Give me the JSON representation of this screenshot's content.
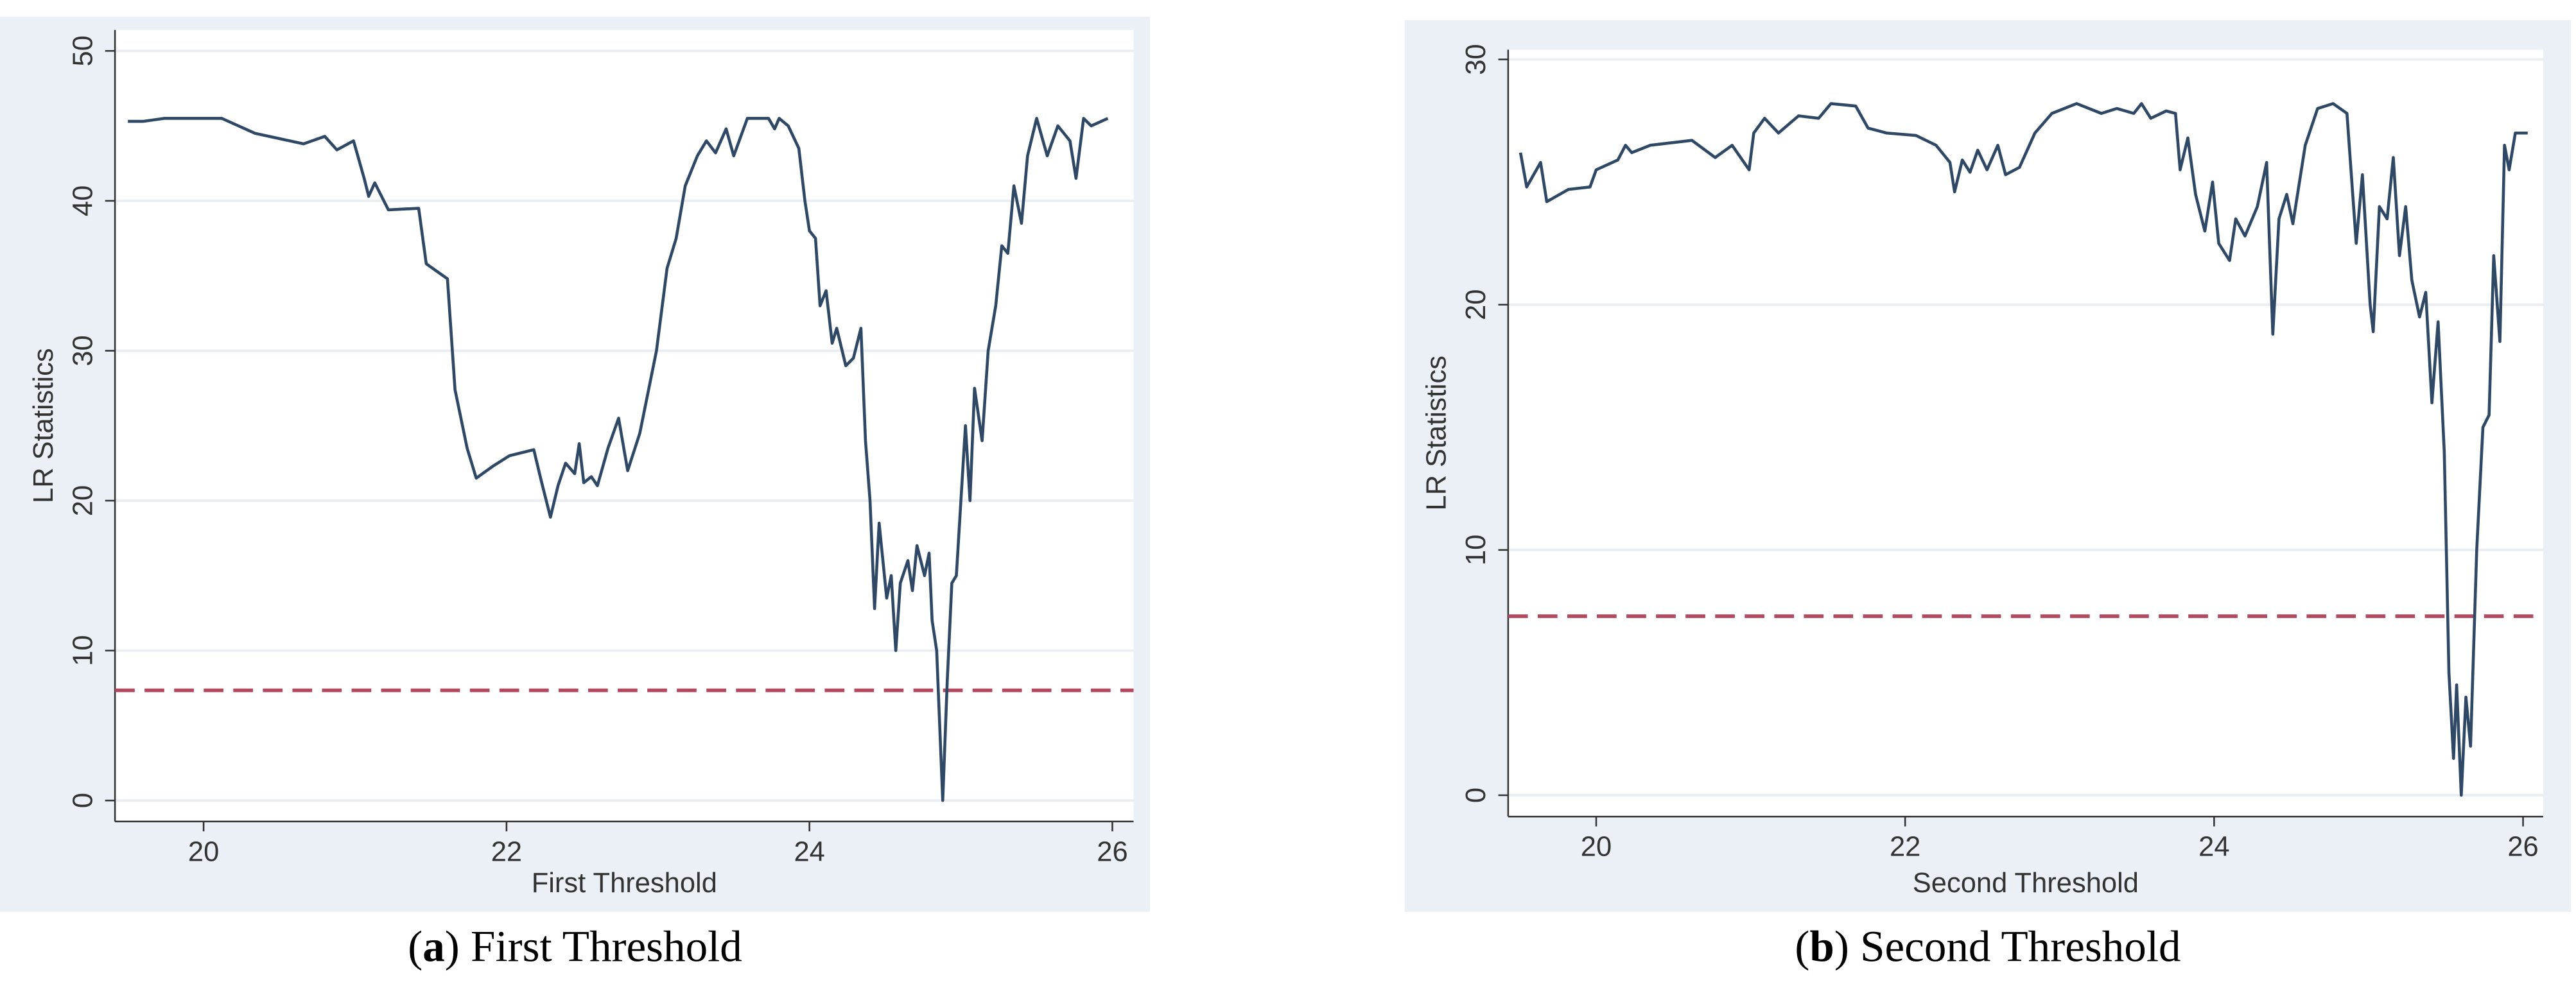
{
  "chart_data": [
    {
      "type": "line",
      "ylabel": "LR Statistics",
      "xlabel": "First Threshold",
      "caption_parts": [
        "(",
        "a",
        ") First Threshold"
      ],
      "xlim": [
        19.415,
        26.14
      ],
      "ylim": [
        -1.4,
        51.4
      ],
      "xticks": [
        20,
        22,
        24,
        26
      ],
      "yticks": [
        0,
        10,
        20,
        30,
        40,
        50
      ],
      "grid": true,
      "color": "#2e4866",
      "critical_value": 7.35,
      "critical_color": "#b4485f",
      "x": [
        19.5,
        19.6,
        19.74,
        20.12,
        20.34,
        20.66,
        20.8,
        20.88,
        20.99,
        21.06,
        21.09,
        21.13,
        21.22,
        21.42,
        21.47,
        21.61,
        21.66,
        21.74,
        21.8,
        21.91,
        22.02,
        22.18,
        22.23,
        22.29,
        22.34,
        22.39,
        22.45,
        22.48,
        22.51,
        22.56,
        22.6,
        22.67,
        22.74,
        22.8,
        22.88,
        22.99,
        23.06,
        23.12,
        23.18,
        23.26,
        23.32,
        23.38,
        23.45,
        23.5,
        23.59,
        23.73,
        23.77,
        23.8,
        23.86,
        23.93,
        23.97,
        24.0,
        24.04,
        24.07,
        24.11,
        24.15,
        24.18,
        24.24,
        24.29,
        24.34,
        24.37,
        24.4,
        24.43,
        24.46,
        24.51,
        24.54,
        24.57,
        24.6,
        24.65,
        24.68,
        24.71,
        24.76,
        24.79,
        24.81,
        24.84,
        24.88,
        24.91,
        24.94,
        24.97,
        25.03,
        25.06,
        25.09,
        25.14,
        25.18,
        25.23,
        25.27,
        25.31,
        25.35,
        25.4,
        25.44,
        25.5,
        25.57,
        25.64,
        25.72,
        25.76,
        25.81,
        25.86,
        25.97
      ],
      "values": [
        45.3,
        45.3,
        45.5,
        45.5,
        44.5,
        43.8,
        44.3,
        43.4,
        44.0,
        41.5,
        40.3,
        41.2,
        39.4,
        39.5,
        35.8,
        34.8,
        27.4,
        23.5,
        21.5,
        22.3,
        23.0,
        23.4,
        21.3,
        18.9,
        21.0,
        22.5,
        21.8,
        23.8,
        21.2,
        21.6,
        21.0,
        23.5,
        25.5,
        22.0,
        24.5,
        30.0,
        35.5,
        37.5,
        41.0,
        43.0,
        44.0,
        43.2,
        44.8,
        43.0,
        45.5,
        45.5,
        44.8,
        45.5,
        45.0,
        43.5,
        40.0,
        38.0,
        37.5,
        33.0,
        34.0,
        30.5,
        31.5,
        29.0,
        29.5,
        31.5,
        24.0,
        20.0,
        12.8,
        18.5,
        13.5,
        15.0,
        10.0,
        14.5,
        16.0,
        14.0,
        17.0,
        15.0,
        16.5,
        12.0,
        10.0,
        0.0,
        8.0,
        14.5,
        15.0,
        25.0,
        20.0,
        27.5,
        24.0,
        30.0,
        33.0,
        37.0,
        36.5,
        41.0,
        38.5,
        43.0,
        45.5,
        43.0,
        45.0,
        44.0,
        41.5,
        45.5,
        45.0,
        45.5
      ]
    },
    {
      "type": "line",
      "ylabel": "LR Statistics",
      "xlabel": "Second Threshold",
      "caption_parts": [
        "(",
        "b",
        ") Second Threshold"
      ],
      "xlim": [
        19.43,
        26.13
      ],
      "ylim": [
        -0.87,
        30.4
      ],
      "xticks": [
        20,
        22,
        24,
        26
      ],
      "yticks": [
        0,
        10,
        20,
        30
      ],
      "grid": true,
      "color": "#2e4866",
      "critical_value": 7.3,
      "critical_color": "#b4485f",
      "x": [
        19.51,
        19.55,
        19.64,
        19.68,
        19.82,
        19.96,
        20.0,
        20.14,
        20.19,
        20.23,
        20.35,
        20.62,
        20.77,
        20.88,
        20.99,
        21.02,
        21.09,
        21.18,
        21.31,
        21.44,
        21.52,
        21.68,
        21.76,
        21.88,
        22.07,
        22.2,
        22.29,
        22.32,
        22.37,
        22.42,
        22.47,
        22.53,
        22.6,
        22.65,
        22.74,
        22.84,
        22.95,
        23.11,
        23.27,
        23.37,
        23.48,
        23.53,
        23.59,
        23.69,
        23.75,
        23.78,
        23.83,
        23.88,
        23.94,
        23.99,
        24.03,
        24.1,
        24.14,
        24.2,
        24.28,
        24.34,
        24.38,
        24.42,
        24.47,
        24.51,
        24.54,
        24.59,
        24.67,
        24.77,
        24.86,
        24.92,
        24.96,
        25.01,
        25.03,
        25.07,
        25.12,
        25.16,
        25.2,
        25.24,
        25.28,
        25.33,
        25.37,
        25.41,
        25.45,
        25.49,
        25.52,
        25.55,
        25.57,
        25.6,
        25.63,
        25.66,
        25.7,
        25.74,
        25.78,
        25.81,
        25.85,
        25.88,
        25.91,
        25.95,
        26.03
      ],
      "values": [
        26.2,
        24.8,
        25.8,
        24.2,
        24.7,
        24.8,
        25.5,
        25.9,
        26.5,
        26.2,
        26.5,
        26.7,
        26.0,
        26.5,
        25.5,
        27.0,
        27.6,
        27.0,
        27.7,
        27.6,
        28.2,
        28.1,
        27.2,
        27.0,
        26.9,
        26.5,
        25.8,
        24.6,
        25.9,
        25.4,
        26.3,
        25.5,
        26.5,
        25.3,
        25.6,
        27.0,
        27.8,
        28.2,
        27.8,
        28.0,
        27.8,
        28.2,
        27.6,
        27.9,
        27.8,
        25.5,
        26.8,
        24.5,
        23.0,
        25.0,
        22.5,
        21.8,
        23.5,
        22.8,
        24.0,
        25.8,
        18.8,
        23.5,
        24.5,
        23.3,
        24.5,
        26.5,
        28.0,
        28.2,
        27.8,
        22.5,
        25.3,
        20.0,
        18.9,
        24.0,
        23.5,
        26.0,
        22.0,
        24.0,
        21.0,
        19.5,
        20.5,
        16.0,
        19.3,
        14.0,
        5.0,
        1.5,
        4.5,
        0.0,
        4.0,
        2.0,
        10.0,
        15.0,
        15.5,
        22.0,
        18.5,
        26.5,
        25.5,
        27.0,
        27.0
      ]
    }
  ]
}
